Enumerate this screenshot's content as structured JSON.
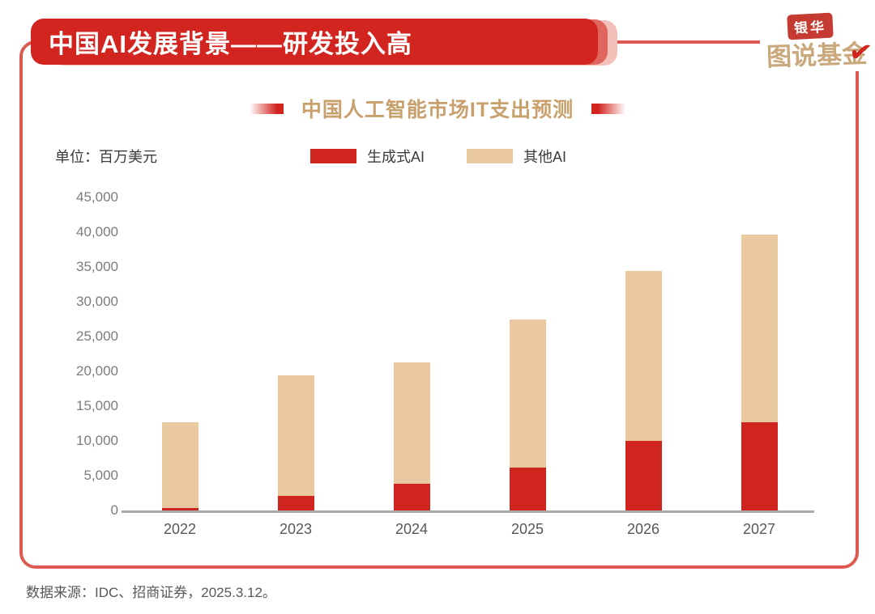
{
  "banner": {
    "title": "中国AI发展背景——研发投入高"
  },
  "logo": {
    "badge": "银华",
    "wordmark": "图说基金",
    "checkmark": "✔"
  },
  "chart_data": {
    "type": "bar",
    "stacked": true,
    "title": "中国人工智能市场IT支出预测",
    "unit_label": "单位：百万美元",
    "categories": [
      "2022",
      "2023",
      "2024",
      "2025",
      "2026",
      "2027"
    ],
    "series": [
      {
        "name": "生成式AI",
        "color": "#d0241f",
        "values": [
          350,
          2150,
          3800,
          6200,
          10000,
          12700
        ]
      },
      {
        "name": "其他AI",
        "color": "#eac9a0",
        "values": [
          12350,
          17250,
          17500,
          21300,
          24400,
          27000
        ]
      }
    ],
    "totals": [
      12700,
      19400,
      21300,
      27500,
      34400,
      39700
    ],
    "xlabel": "",
    "ylabel": "",
    "ylim": [
      0,
      45000
    ],
    "ytick_step": 5000,
    "ytick_labels": [
      "0",
      "5,000",
      "10,000",
      "15,000",
      "20,000",
      "25,000",
      "30,000",
      "35,000",
      "40,000",
      "45,000"
    ],
    "legend_position": "top",
    "grid": false
  },
  "footer": {
    "source": "数据来源：IDC、招商证券，2025.3.12。"
  },
  "colors": {
    "banner_red": "#d3251f",
    "frame_border_red": "#dd5a52",
    "bar_red": "#d0241f",
    "bar_tan": "#eac9a0",
    "title_gold": "#c7a06c",
    "logo_gold": "#c9a87b",
    "axis_gray": "#a9a9a9",
    "tick_text_gray": "#7c7c7c",
    "label_text_gray": "#595757"
  }
}
